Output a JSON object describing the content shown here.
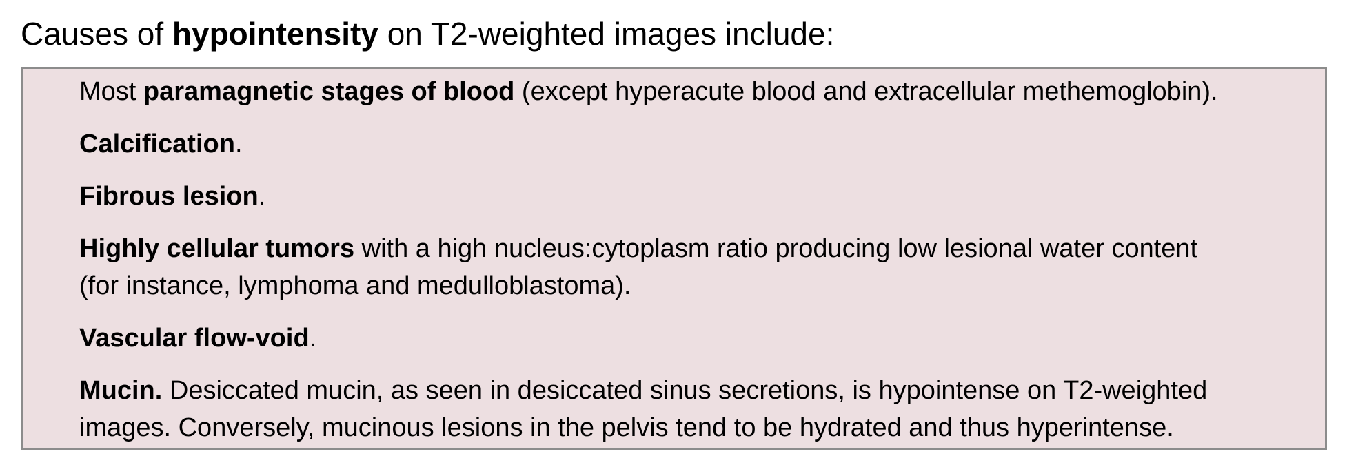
{
  "heading": {
    "prefix": "Causes of ",
    "bold": "hypointensity",
    "suffix": " on T2-weighted images include:"
  },
  "items": [
    {
      "bold": "paramagnetic stages of blood",
      "lead": "Most ",
      "rest": " (except hyperacute blood and extracellular methemoglobin)."
    },
    {
      "bold": "Calcification",
      "rest": "."
    },
    {
      "bold": "Fibrous lesion",
      "rest": "."
    },
    {
      "bold": "Highly cellular tumors",
      "rest": " with a high nucleus:cytoplasm ratio producing low lesional water content",
      "line2": "(for instance, lymphoma and medulloblastoma)."
    },
    {
      "bold": "Vascular flow-void",
      "rest": "."
    },
    {
      "bold": "Mucin.",
      "rest": " Desiccated mucin, as seen in desiccated sinus secretions, is hypointense on T2-weighted",
      "line2": "images. Conversely, mucinous lesions in the pelvis tend to be hydrated and thus hyperintense."
    }
  ]
}
